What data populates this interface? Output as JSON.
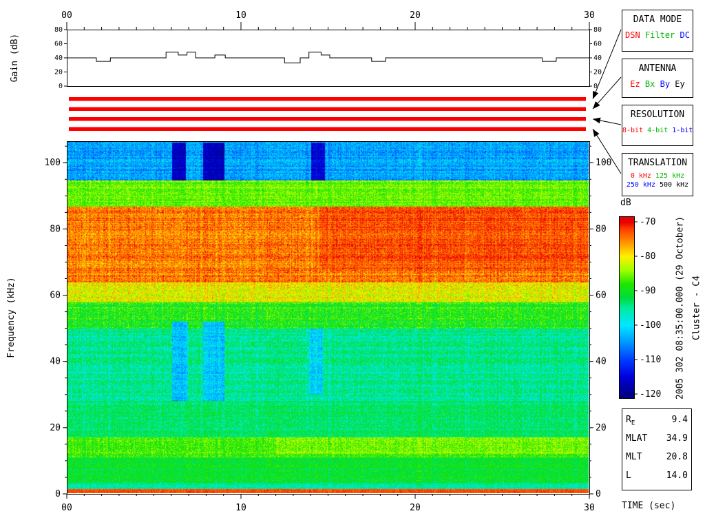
{
  "side_labels": {
    "datetime": "2005 302 08:35:00.000 (29 October)",
    "spacecraft": "Cluster - C4"
  },
  "legend": {
    "data_mode": {
      "title": "DATA MODE",
      "rows": [
        [
          {
            "label": "DSN",
            "color": "#ff0000"
          },
          {
            "label": "Filter",
            "color": "#00b400"
          },
          {
            "label": "DC",
            "color": "#0000ff"
          }
        ]
      ]
    },
    "antenna": {
      "title": "ANTENNA",
      "rows": [
        [
          {
            "label": "Ez",
            "color": "#ff0000"
          },
          {
            "label": "Bx",
            "color": "#00b400"
          },
          {
            "label": "By",
            "color": "#0000ff"
          },
          {
            "label": "Ey",
            "color": "#000000"
          }
        ]
      ]
    },
    "resolution": {
      "title": "RESOLUTION",
      "rows": [
        [
          {
            "label": "8-bit",
            "color": "#ff0000"
          },
          {
            "label": "4-bit",
            "color": "#00b400"
          },
          {
            "label": "1-bit",
            "color": "#0000ff"
          }
        ]
      ]
    },
    "translation": {
      "title": "TRANSLATION",
      "rows": [
        [
          {
            "label": "0 kHz",
            "color": "#ff0000"
          },
          {
            "label": "125 kHz",
            "color": "#00b400"
          }
        ],
        [
          {
            "label": "250 kHz",
            "color": "#0000ff"
          },
          {
            "label": "500 kHz",
            "color": "#000000"
          }
        ]
      ]
    }
  },
  "status_bars": {
    "color": "#ff0000",
    "rows": [
      "data-mode",
      "antenna",
      "resolution",
      "translation"
    ]
  },
  "ephemeris": {
    "rows": [
      {
        "label": "R",
        "sub": "E",
        "value": "9.4"
      },
      {
        "label": "MLAT",
        "sub": "",
        "value": "34.9"
      },
      {
        "label": "MLT",
        "sub": "",
        "value": "20.8"
      },
      {
        "label": "L",
        "sub": "",
        "value": "14.0"
      }
    ]
  },
  "chart_data": [
    {
      "id": "gain",
      "type": "line",
      "ylabel": "Gain (dB)",
      "xlim": [
        0,
        30
      ],
      "ylim": [
        0,
        80
      ],
      "yticks": [
        0,
        20,
        40,
        60,
        80
      ],
      "xticks": [
        {
          "v": 0,
          "label": "00"
        },
        {
          "v": 10,
          "label": "10"
        },
        {
          "v": 20,
          "label": "20"
        },
        {
          "v": 30,
          "label": "30"
        }
      ],
      "minor_x_step": 1,
      "step_points": [
        [
          0,
          40
        ],
        [
          1.7,
          35
        ],
        [
          2.5,
          40
        ],
        [
          5.7,
          48
        ],
        [
          6.4,
          44
        ],
        [
          6.9,
          48
        ],
        [
          7.4,
          40
        ],
        [
          8.5,
          44
        ],
        [
          9.1,
          40
        ],
        [
          12.5,
          33
        ],
        [
          13.4,
          40
        ],
        [
          13.9,
          48
        ],
        [
          14.6,
          44
        ],
        [
          15.1,
          40
        ],
        [
          17.5,
          35
        ],
        [
          18.3,
          40
        ],
        [
          27.3,
          35
        ],
        [
          28.1,
          40
        ]
      ]
    },
    {
      "id": "spectrogram",
      "type": "heatmap",
      "xlabel": "TIME (sec)",
      "ylabel": "Frequency (kHz)",
      "xlim": [
        0,
        30
      ],
      "ylim": [
        0,
        106.5
      ],
      "yticks": [
        0,
        20,
        40,
        60,
        80,
        100
      ],
      "minor_y_step": 5,
      "xticks": [
        {
          "v": 0,
          "label": "00"
        },
        {
          "v": 10,
          "label": "10"
        },
        {
          "v": 20,
          "label": "20"
        },
        {
          "v": 30,
          "label": "30"
        }
      ],
      "minor_x_step": 1,
      "colorbar": {
        "label": "dB",
        "min": -120,
        "max": -70,
        "ticks": [
          -70,
          -80,
          -90,
          -100,
          -110,
          -120
        ]
      },
      "colormap_stops": [
        [
          0,
          0,
          0,
          135
        ],
        [
          0.1,
          0,
          0,
          220
        ],
        [
          0.2,
          0,
          60,
          255
        ],
        [
          0.3,
          0,
          150,
          255
        ],
        [
          0.4,
          0,
          230,
          255
        ],
        [
          0.5,
          0,
          235,
          160
        ],
        [
          0.56,
          0,
          220,
          60
        ],
        [
          0.64,
          30,
          230,
          0
        ],
        [
          0.72,
          160,
          255,
          0
        ],
        [
          0.8,
          255,
          240,
          0
        ],
        [
          0.88,
          255,
          150,
          0
        ],
        [
          0.96,
          255,
          60,
          0
        ],
        [
          1,
          230,
          0,
          0
        ]
      ],
      "noise_seed": 42,
      "bands": [
        {
          "f": [
            0,
            1.3
          ],
          "db": -73,
          "noise": 2.5
        },
        {
          "f": [
            1.3,
            3
          ],
          "db": -96,
          "noise": 5
        },
        {
          "f": [
            3,
            11
          ],
          "db": -91,
          "noise": 4
        },
        {
          "f": [
            11,
            17
          ],
          "db": -87,
          "noise": 5
        },
        {
          "f": [
            17,
            28
          ],
          "db": -93,
          "noise": 5
        },
        {
          "f": [
            28,
            50
          ],
          "db": -95,
          "noise": 6
        },
        {
          "f": [
            50,
            58
          ],
          "db": -89,
          "noise": 6
        },
        {
          "f": [
            58,
            64
          ],
          "db": -81,
          "noise": 6
        },
        {
          "f": [
            64,
            87
          ],
          "db": -75,
          "noise": 5.5
        },
        {
          "f": [
            87,
            95
          ],
          "db": -86,
          "noise": 5
        },
        {
          "f": [
            95,
            106.5
          ],
          "db": -104,
          "noise": 6
        }
      ],
      "patches": [
        {
          "t": [
            6.0,
            6.8
          ],
          "f": [
            95,
            106.5
          ],
          "db": -116,
          "noise": 4
        },
        {
          "t": [
            7.8,
            9.0
          ],
          "f": [
            95,
            106.5
          ],
          "db": -117,
          "noise": 4
        },
        {
          "t": [
            14.0,
            14.8
          ],
          "f": [
            95,
            106.5
          ],
          "db": -115,
          "noise": 4
        },
        {
          "t": [
            6.0,
            6.9
          ],
          "f": [
            28,
            52
          ],
          "db": -102,
          "noise": 5
        },
        {
          "t": [
            7.8,
            9.0
          ],
          "f": [
            28,
            52
          ],
          "db": -102,
          "noise": 5
        },
        {
          "t": [
            13.9,
            14.7
          ],
          "f": [
            30,
            50
          ],
          "db": -101,
          "noise": 5
        },
        {
          "t": [
            12.0,
            30.0
          ],
          "f": [
            12,
            17
          ],
          "db": -85,
          "noise": 5
        },
        {
          "t": [
            14.5,
            30.0
          ],
          "f": [
            68,
            87
          ],
          "db": -73,
          "noise": 4.5
        }
      ]
    }
  ]
}
